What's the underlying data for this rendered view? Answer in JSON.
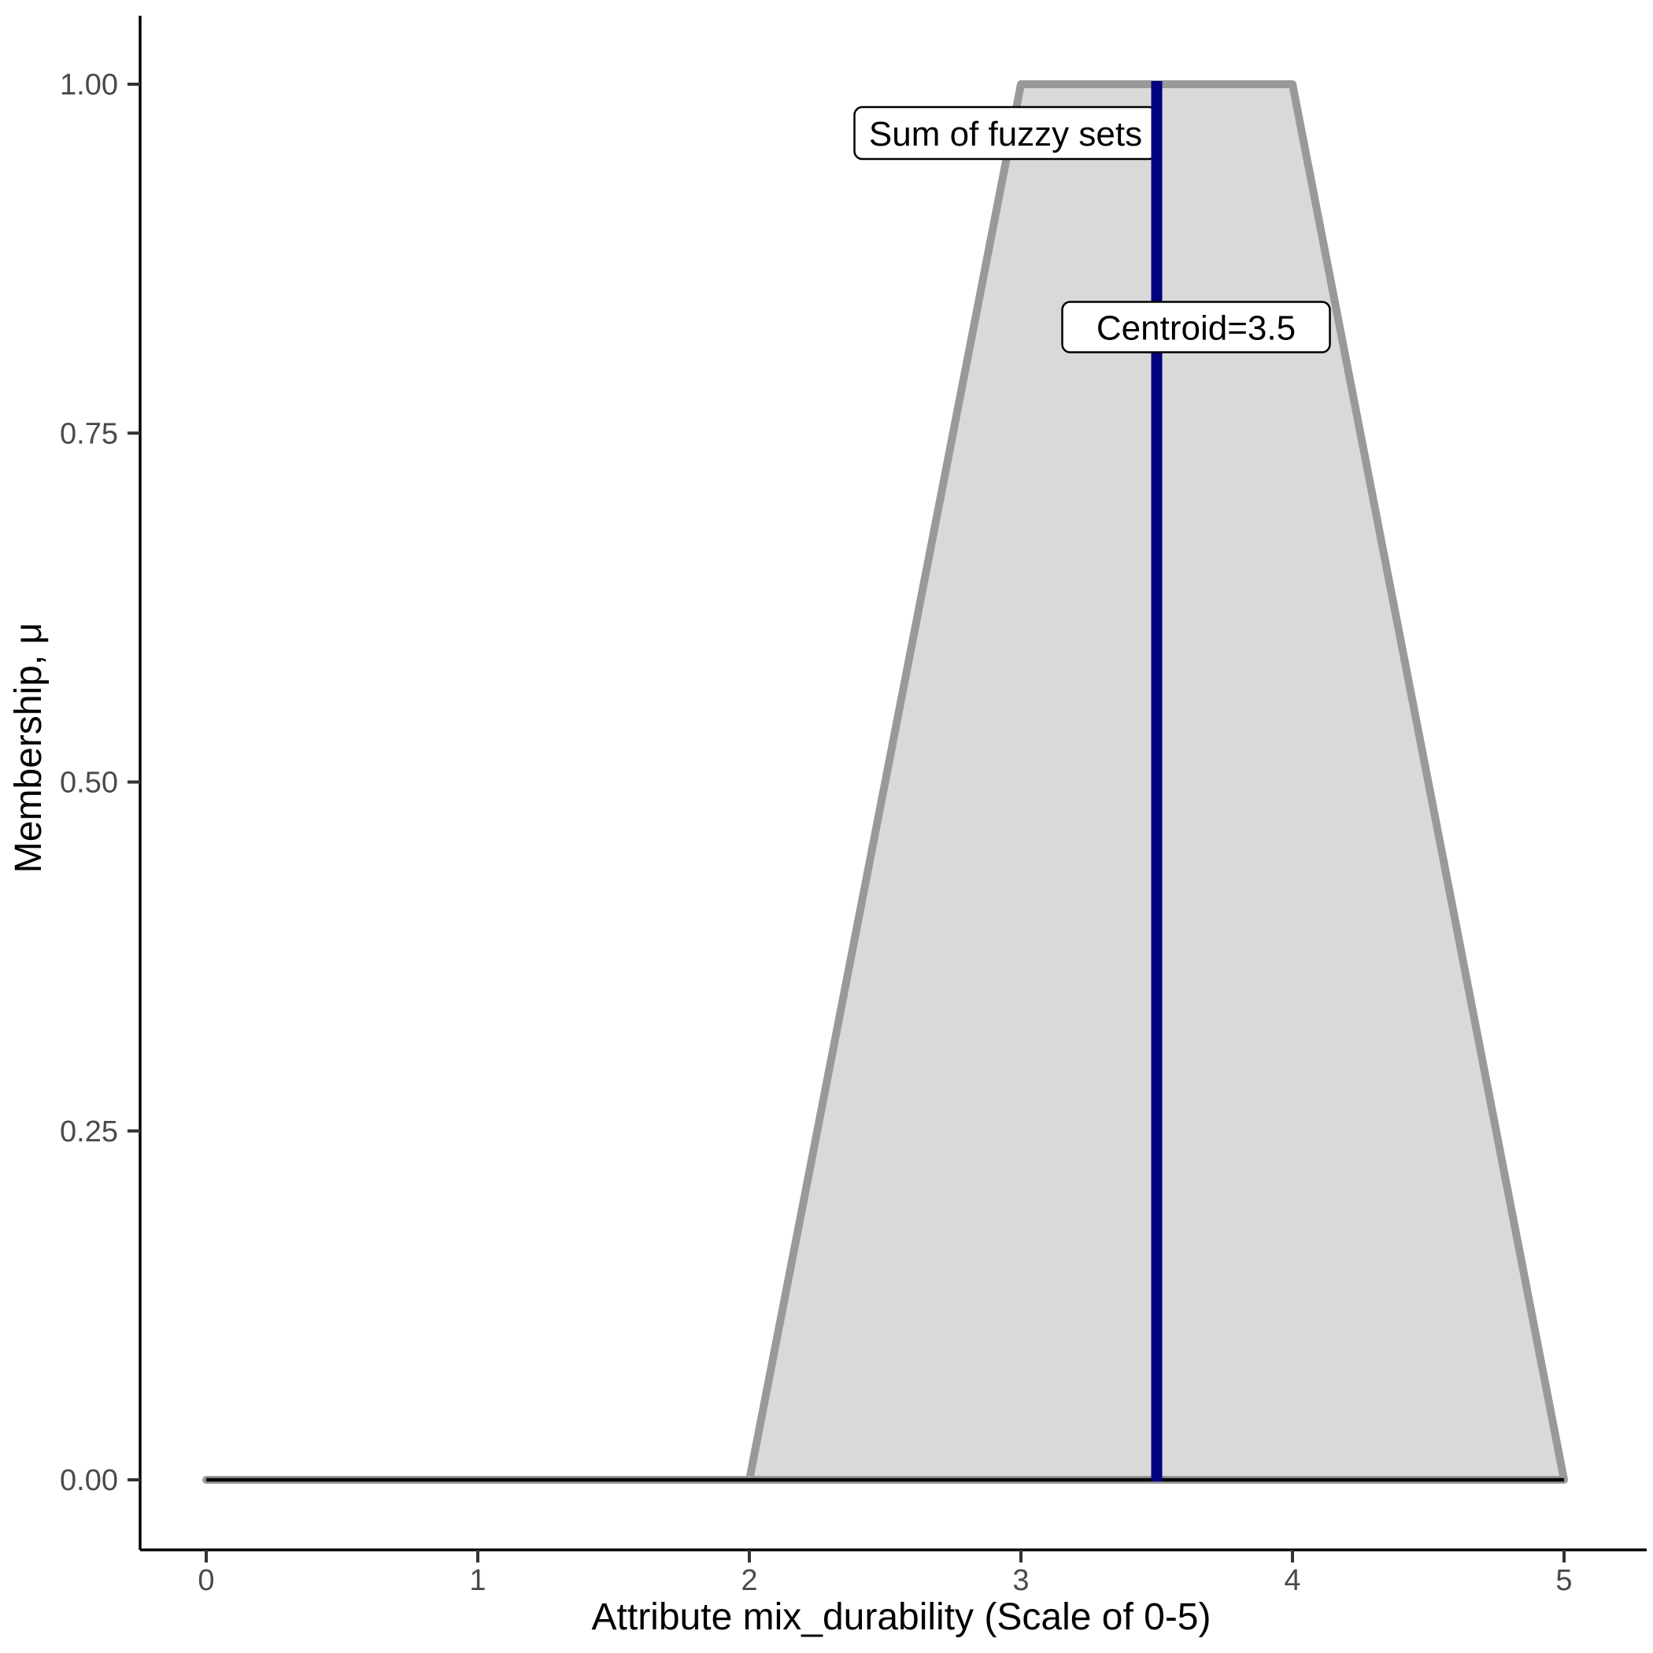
{
  "chart_data": {
    "type": "area",
    "title": "",
    "xlabel": "Attribute mix_durability (Scale of 0-5)",
    "ylabel": "Membership, μ",
    "xlim": [
      0,
      5
    ],
    "ylim": [
      0,
      1
    ],
    "grid": false,
    "legend": "none",
    "x_ticks": [
      {
        "value": 0,
        "label": "0"
      },
      {
        "value": 1,
        "label": "1"
      },
      {
        "value": 2,
        "label": "2"
      },
      {
        "value": 3,
        "label": "3"
      },
      {
        "value": 4,
        "label": "4"
      },
      {
        "value": 5,
        "label": "5"
      }
    ],
    "y_ticks": [
      {
        "value": 0.0,
        "label": "0.00"
      },
      {
        "value": 0.25,
        "label": "0.25"
      },
      {
        "value": 0.5,
        "label": "0.50"
      },
      {
        "value": 0.75,
        "label": "0.75"
      },
      {
        "value": 1.0,
        "label": "1.00"
      }
    ],
    "series": [
      {
        "name": "sum-of-fuzzy-sets",
        "kind": "filled-area",
        "points": [
          [
            0,
            0
          ],
          [
            2,
            0
          ],
          [
            3,
            1
          ],
          [
            4,
            1
          ],
          [
            5,
            0
          ]
        ],
        "fill": "#d9d9d9",
        "stroke": "#999999",
        "stroke_width": 10
      },
      {
        "name": "baseline-membership",
        "kind": "line",
        "points": [
          [
            0,
            0
          ],
          [
            5,
            0
          ]
        ],
        "stroke": "#000000",
        "stroke_width": 4.5
      }
    ],
    "centroid": {
      "value": 3.5,
      "color": "#000080",
      "line_width": 14,
      "span": [
        0,
        1
      ]
    },
    "annotations": [
      {
        "id": "sum_label",
        "text": "Sum of fuzzy sets",
        "anchor_x": 3.5,
        "anchor_y": 0.965,
        "align": "right-of-box-at-anchor"
      },
      {
        "id": "centroid_label",
        "text": "Centroid=3.5",
        "anchor_x": 3.5,
        "anchor_y": 0.826,
        "align": "center-offset-right"
      }
    ]
  },
  "colors": {
    "background": "#ffffff",
    "axis": "#000000",
    "tick": "#333333",
    "tick_label": "#4a4a4a",
    "area_fill": "#d9d9d9",
    "area_stroke": "#999999",
    "baseline": "#000000",
    "centroid": "#000080",
    "annotation_box": "#ffffff",
    "annotation_border": "#000000"
  }
}
